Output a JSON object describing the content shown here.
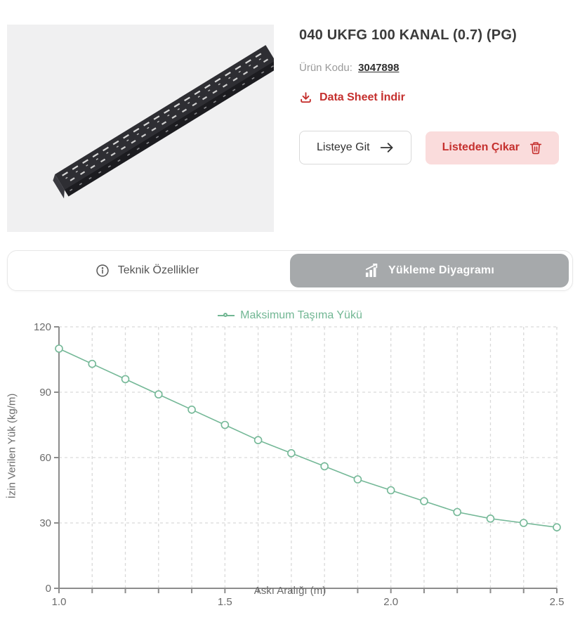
{
  "product": {
    "title": "040 UKFG 100 KANAL (0.7) (PG)",
    "code_label": "Ürün Kodu:",
    "code_value": "3047898",
    "datasheet_label": "Data Sheet İndir",
    "go_to_list_label": "Listeye Git",
    "remove_from_list_label": "Listeden Çıkar"
  },
  "tabs": [
    {
      "label": "Teknik Özellikler",
      "icon": "info-icon",
      "active": false
    },
    {
      "label": "Yükleme Diyagramı",
      "icon": "bar-chart-icon",
      "active": true
    }
  ],
  "colors": {
    "accent_red": "#c5302e",
    "danger_bg": "#fadcdc",
    "line_green": "#74b897",
    "tab_active_bg": "#a6a9ab",
    "grid_gray": "#d9d9d9",
    "axis_gray": "#8c8c8c",
    "tick_text": "#6b6b6b"
  },
  "chart_data": {
    "type": "line",
    "legend": "Maksimum Taşıma Yükü",
    "xlabel": "Askı Aralığı (m)",
    "ylabel": "İzin Verilen Yük (kg/m)",
    "x": [
      1.0,
      1.1,
      1.2,
      1.3,
      1.4,
      1.5,
      1.6,
      1.7,
      1.8,
      1.9,
      2.0,
      2.1,
      2.2,
      2.3,
      2.4,
      2.5
    ],
    "series": [
      {
        "name": "Maksimum Taşıma Yükü",
        "values": [
          110,
          103,
          96,
          89,
          82,
          75,
          68,
          62,
          56,
          50,
          45,
          40,
          35,
          32,
          30,
          28
        ]
      }
    ],
    "xlim": [
      1.0,
      2.5
    ],
    "ylim": [
      0,
      120
    ],
    "y_ticks": [
      0,
      30,
      60,
      90,
      120
    ],
    "x_tick_labels": {
      "1": "1.0",
      "1.5": "1.5",
      "2": "2.0",
      "2.5": "2.5"
    },
    "grid": true,
    "legend_position": "top"
  }
}
